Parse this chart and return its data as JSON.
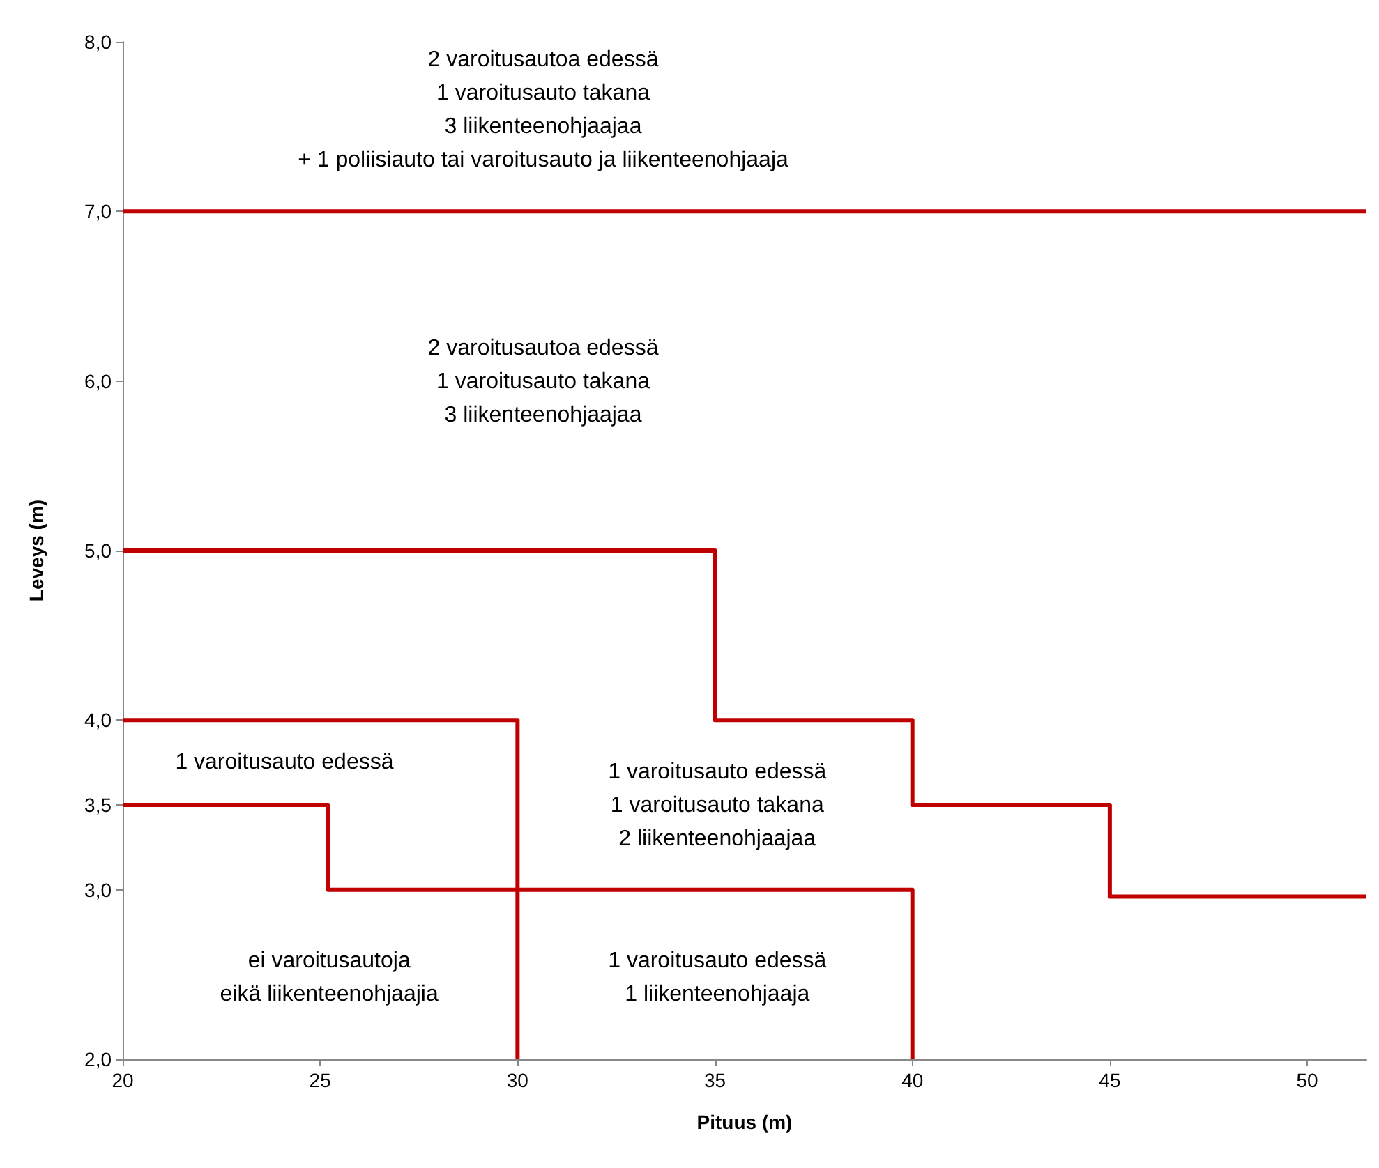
{
  "chart_data": {
    "type": "line",
    "xlabel": "Pituus (m)",
    "ylabel": "Leveys (m)",
    "xlim": [
      20,
      51.5
    ],
    "xticks": [
      20,
      25,
      30,
      35,
      40,
      45,
      50
    ],
    "ylim": [
      2,
      8
    ],
    "yticks": [
      {
        "value": 2,
        "label": "2,0"
      },
      {
        "value": 3,
        "label": "3,0"
      },
      {
        "value": 3.5,
        "label": "3,5"
      },
      {
        "value": 4,
        "label": "4,0"
      },
      {
        "value": 5,
        "label": "5,0"
      },
      {
        "value": 6,
        "label": "6,0"
      },
      {
        "value": 7,
        "label": "7,0"
      },
      {
        "value": 8,
        "label": "8,0"
      }
    ],
    "series": [
      {
        "color": "#c00000",
        "x": [
          20,
          51.5
        ],
        "values": [
          7,
          7
        ]
      },
      {
        "color": "#c00000",
        "x": [
          20,
          35,
          35,
          40,
          40,
          45,
          45,
          51.5
        ],
        "values": [
          5,
          5,
          4,
          4,
          3.5,
          3.5,
          2.96,
          2.96
        ]
      },
      {
        "color": "#c00000",
        "x": [
          20,
          30,
          30
        ],
        "values": [
          4,
          4,
          2
        ]
      },
      {
        "color": "#c00000",
        "x": [
          20,
          25.2,
          25.2,
          40,
          40
        ],
        "values": [
          3.5,
          3.5,
          3,
          3,
          2
        ]
      }
    ],
    "annotations": [
      "2 varoitusautoa edessä\n1 varoitusauto takana\n3 liikenteenohjaajaa\n+ 1 poliisiauto tai varoitusauto ja liikenteenohjaaja",
      "2 varoitusautoa edessä\n1 varoitusauto takana\n3 liikenteenohjaajaa",
      "1 varoitusauto edessä",
      "1 varoitusauto edessä\n1 varoitusauto takana\n2 liikenteenohjaajaa",
      "ei varoitusautoja\neikä liikenteenohjaajia",
      "1 varoitusauto edessä\n1 liikenteenohjaaja"
    ],
    "grid": false,
    "marker": "none",
    "line_style": "solid"
  }
}
